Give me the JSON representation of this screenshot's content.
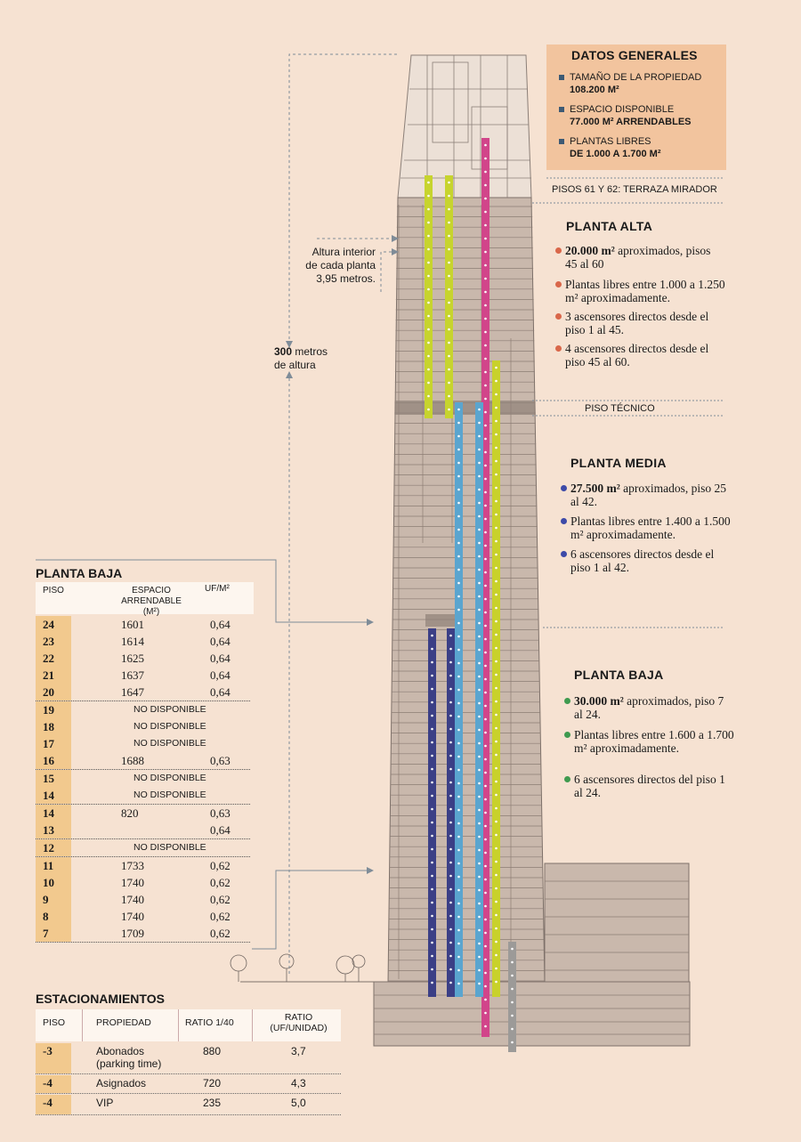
{
  "datos_generales": {
    "title": "DATOS GENERALES",
    "items": [
      {
        "label": "TAMAÑO DE LA PROPIEDAD",
        "value": "108.200 M²"
      },
      {
        "label": "ESPACIO DISPONIBLE",
        "value": "77.000 M² ARRENDABLES"
      },
      {
        "label": "PLANTAS LIBRES",
        "value": "DE 1.000 A 1.700 M²"
      }
    ]
  },
  "labels": {
    "terraza": "PISOS 61 Y 62: TERRAZA MIRADOR",
    "piso_tecnico": "PISO TÉCNICO",
    "altura_interior_1": "Altura interior",
    "altura_interior_2": "de cada planta",
    "altura_interior_3": "3,95 metros.",
    "altura_total_num": "300",
    "altura_total_1": "metros",
    "altura_total_2": "de altura"
  },
  "planta_alta": {
    "title": "PLANTA ALTA",
    "color": "#d9674a",
    "bullets": [
      {
        "bold": "20.000 m² ",
        "text": "aproximados, pisos 45 al 60"
      },
      {
        "bold": "",
        "text": "Plantas libres entre 1.000 a 1.250 m² aproximadamente."
      },
      {
        "bold": "",
        "text": "3 ascensores directos desde el piso 1 al 45."
      },
      {
        "bold": "",
        "text": "4 ascensores directos desde el piso 45 al 60."
      }
    ]
  },
  "planta_media": {
    "title": "PLANTA MEDIA",
    "color": "#3d4aa8",
    "bullets": [
      {
        "bold": "27.500 m² ",
        "text": "aproximados, piso 25 al 42."
      },
      {
        "bold": "",
        "text": "Plantas libres entre 1.400 a 1.500 m² aproximadamente."
      },
      {
        "bold": "",
        "text": "6 ascensores directos desde el piso 1 al 42."
      }
    ]
  },
  "planta_baja": {
    "title": "PLANTA BAJA",
    "color": "#3f9a4f",
    "bullets": [
      {
        "bold": "30.000 m² ",
        "text": "aproximados, piso 7 al 24."
      },
      {
        "bold": "",
        "text": "Plantas libres entre 1.600 a 1.700 m² aproximadamente."
      },
      {
        "bold": "",
        "text": "6 ascensores directos del piso 1 al 24."
      }
    ]
  },
  "tabla_planta_baja": {
    "title": "PLANTA BAJA",
    "headers": {
      "piso": "PISO",
      "espacio_1": "ESPACIO",
      "espacio_2": "ARRENDABLE (M²)",
      "uf": "UF/M²"
    },
    "rows": [
      {
        "piso": "24",
        "espacio": "1601",
        "uf": "0,64"
      },
      {
        "piso": "23",
        "espacio": "1614",
        "uf": "0,64"
      },
      {
        "piso": "22",
        "espacio": "1625",
        "uf": "0,64"
      },
      {
        "piso": "21",
        "espacio": "1637",
        "uf": "0,64"
      },
      {
        "piso": "20",
        "espacio": "1647",
        "uf": "0,64"
      },
      {
        "piso": "19",
        "nd": "NO DISPONIBLE"
      },
      {
        "piso": "18",
        "nd": "NO DISPONIBLE"
      },
      {
        "piso": "17",
        "nd": "NO DISPONIBLE"
      },
      {
        "piso": "16",
        "espacio": "1688",
        "uf": "0,63"
      },
      {
        "piso": "15",
        "nd": "NO DISPONIBLE"
      },
      {
        "piso": "14",
        "nd": "NO DISPONIBLE"
      },
      {
        "piso": "14",
        "espacio": "820",
        "uf": "0,63"
      },
      {
        "piso": "13",
        "espacio": "",
        "uf": "0,64"
      },
      {
        "piso": "12",
        "nd": "NO DISPONIBLE"
      },
      {
        "piso": "11",
        "espacio": "1733",
        "uf": "0,62"
      },
      {
        "piso": "10",
        "espacio": "1740",
        "uf": "0,62"
      },
      {
        "piso": "9",
        "espacio": "1740",
        "uf": "0,62"
      },
      {
        "piso": "8",
        "espacio": "1740",
        "uf": "0,62"
      },
      {
        "piso": "7",
        "espacio": "1709",
        "uf": "0,62"
      }
    ]
  },
  "tabla_estacionamientos": {
    "title": "ESTACIONAMIENTOS",
    "headers": {
      "piso": "PISO",
      "propiedad": "PROPIEDAD",
      "ratio": "RATIO 1/40",
      "ratio_uf_1": "RATIO",
      "ratio_uf_2": "(UF/UNIDAD)"
    },
    "rows": [
      {
        "piso": "-3",
        "propiedad_1": "Abonados",
        "propiedad_2": "(parking time)",
        "ratio": "880",
        "ratio_uf": "3,7"
      },
      {
        "piso": "-4",
        "propiedad_1": "Asignados",
        "propiedad_2": "",
        "ratio": "720",
        "ratio_uf": "4,3"
      },
      {
        "piso": "-4",
        "propiedad_1": "VIP",
        "propiedad_2": "",
        "ratio": "235",
        "ratio_uf": "5,0"
      }
    ]
  },
  "colors": {
    "background": "#f6e2d2",
    "facade": "#c9b8ac",
    "yellow": "#c7d42e",
    "pink": "#d1458a",
    "blue": "#5aa5cf",
    "navy": "#3b3f86",
    "gray": "#9c9a98",
    "lime": "#c8d12b"
  }
}
